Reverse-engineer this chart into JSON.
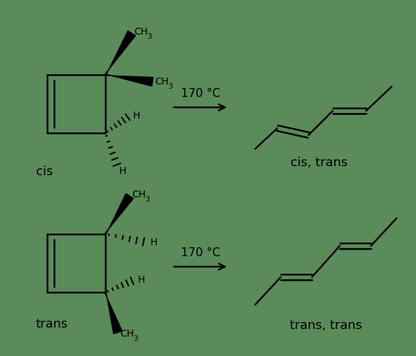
{
  "background_color": "#5b8a5b",
  "line_color": "#000000",
  "text_color": "#000000",
  "fig_width": 6.0,
  "fig_height": 5.14,
  "dpi": 100,
  "label_cis": "cis",
  "label_trans": "trans",
  "label_cis_trans": "cis, trans",
  "label_trans_trans": "trans, trans",
  "condition": "170 °C",
  "font_size_label": 13,
  "font_size_condition": 12,
  "font_size_ch": 11,
  "font_size_sub": 8,
  "font_size_H": 11
}
